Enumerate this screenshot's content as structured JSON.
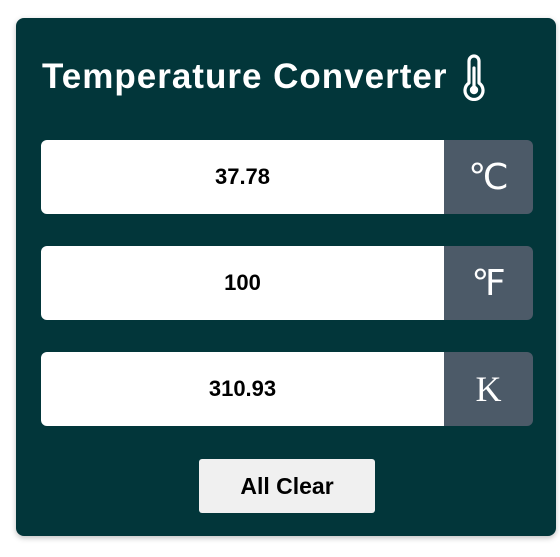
{
  "app": {
    "title": "Temperature Converter",
    "title_icon": "thermometer-icon"
  },
  "fields": [
    {
      "id": "celsius",
      "value": "37.78",
      "unit": "℃"
    },
    {
      "id": "fahrenheit",
      "value": "100",
      "unit": "℉"
    },
    {
      "id": "kelvin",
      "value": "310.93",
      "unit": "K"
    }
  ],
  "actions": {
    "clear_label": "All Clear"
  },
  "colors": {
    "card_bg": "#02363a",
    "unit_bg": "#4c5a68",
    "text_light": "#ffffff",
    "button_bg": "#f0f0f0"
  }
}
